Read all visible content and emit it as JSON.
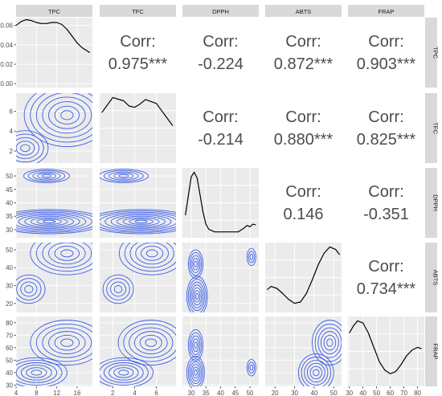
{
  "chart_data": {
    "type": "scatterplot-matrix",
    "variables": [
      "TPC",
      "TFC",
      "DPPH",
      "ABTS",
      "FRAP"
    ],
    "corr_label": "Corr:",
    "correlations": [
      {
        "row": "TFC",
        "col": "TPC",
        "text": "0.975***"
      },
      {
        "row": "DPPH",
        "col": "TPC",
        "text": "-0.224"
      },
      {
        "row": "ABTS",
        "col": "TPC",
        "text": "0.872***"
      },
      {
        "row": "FRAP",
        "col": "TPC",
        "text": "0.903***"
      },
      {
        "row": "DPPH",
        "col": "TFC",
        "text": "-0.214"
      },
      {
        "row": "ABTS",
        "col": "TFC",
        "text": "0.880***"
      },
      {
        "row": "FRAP",
        "col": "TFC",
        "text": "0.825***"
      },
      {
        "row": "ABTS",
        "col": "DPPH",
        "text": "0.146"
      },
      {
        "row": "FRAP",
        "col": "DPPH",
        "text": "-0.351"
      },
      {
        "row": "FRAP",
        "col": "ABTS",
        "text": "0.734***"
      }
    ],
    "axes": {
      "TPC": {
        "range": [
          4,
          19
        ],
        "ticks": [
          "4",
          "8",
          "12",
          "16"
        ]
      },
      "TFC": {
        "range": [
          0.8,
          7.8
        ],
        "ticks": [
          "2",
          "4",
          "6"
        ]
      },
      "DPPH": {
        "range": [
          27,
          53
        ],
        "ticks": [
          "30",
          "35",
          "40",
          "45",
          "50"
        ]
      },
      "ABTS": {
        "range": [
          15,
          54
        ],
        "ticks": [
          "20",
          "30",
          "40",
          "50"
        ]
      },
      "FRAP": {
        "range": [
          29,
          85
        ],
        "ticks": [
          "30",
          "40",
          "50",
          "60",
          "70",
          "80"
        ]
      }
    },
    "density_axis": {
      "variable": "TPC",
      "range": [
        -0.004,
        0.068
      ],
      "ticks": [
        "0.00",
        "0.02",
        "0.04",
        "0.06"
      ]
    },
    "diagonal_densities": {
      "TPC": {
        "x": [
          4,
          5,
          6,
          7,
          8,
          9,
          10,
          11,
          12,
          13,
          14,
          15,
          16,
          17,
          18.5
        ],
        "y": [
          0.06,
          0.064,
          0.066,
          0.065,
          0.063,
          0.062,
          0.062,
          0.063,
          0.063,
          0.061,
          0.056,
          0.049,
          0.042,
          0.037,
          0.032
        ]
      },
      "TFC": {
        "x": [
          1.0,
          2.0,
          3.0,
          3.5,
          4.0,
          4.5,
          5.0,
          6.0,
          7.5
        ],
        "y": [
          0.72,
          0.95,
          0.9,
          0.82,
          0.8,
          0.85,
          0.92,
          0.86,
          0.52
        ]
      },
      "DPPH": {
        "x": [
          28,
          29,
          30,
          31,
          32,
          33,
          34,
          35,
          36,
          38,
          42,
          46,
          48,
          49,
          50,
          51,
          52
        ],
        "y": [
          0.3,
          0.6,
          0.9,
          0.97,
          0.88,
          0.62,
          0.35,
          0.16,
          0.08,
          0.04,
          0.04,
          0.04,
          0.1,
          0.14,
          0.12,
          0.16,
          0.15
        ]
      },
      "ABTS": {
        "x": [
          16,
          18,
          21,
          24,
          27,
          30,
          33,
          36,
          39,
          42,
          45,
          48,
          51,
          53
        ],
        "y": [
          0.3,
          0.35,
          0.32,
          0.24,
          0.15,
          0.09,
          0.11,
          0.24,
          0.45,
          0.68,
          0.86,
          0.96,
          0.92,
          0.84
        ]
      },
      "FRAP": {
        "x": [
          30,
          33,
          36,
          40,
          44,
          48,
          52,
          56,
          60,
          64,
          68,
          72,
          76,
          80,
          83
        ],
        "y": [
          0.7,
          0.8,
          0.87,
          0.84,
          0.7,
          0.5,
          0.3,
          0.18,
          0.13,
          0.16,
          0.26,
          0.38,
          0.46,
          0.5,
          0.48
        ]
      }
    },
    "contour_centers": {
      "TPC|TFC": [
        {
          "x": 14.0,
          "y": 5.6,
          "rx": 1.2,
          "ry": 0.45,
          "n": 7
        },
        {
          "x": 5.8,
          "y": 2.3,
          "rx": 0.9,
          "ry": 0.35,
          "n": 5
        }
      ],
      "TPC|DPPH": [
        {
          "x": 10.5,
          "y": 33.0,
          "rx": 1.2,
          "ry": 0.5,
          "n": 9
        },
        {
          "x": 10.0,
          "y": 50.0,
          "rx": 0.9,
          "ry": 0.5,
          "n": 5
        }
      ],
      "TFC|DPPH": [
        {
          "x": 4.6,
          "y": 33.0,
          "rx": 0.55,
          "ry": 0.5,
          "n": 9
        },
        {
          "x": 3.0,
          "y": 50.0,
          "rx": 0.45,
          "ry": 0.5,
          "n": 5
        }
      ],
      "TPC|ABTS": [
        {
          "x": 14.0,
          "y": 48.0,
          "rx": 1.2,
          "ry": 2.0,
          "n": 6
        },
        {
          "x": 6.5,
          "y": 28.0,
          "rx": 0.8,
          "ry": 2.0,
          "n": 4
        }
      ],
      "TFC|ABTS": [
        {
          "x": 5.6,
          "y": 48.0,
          "rx": 0.5,
          "ry": 2.0,
          "n": 6
        },
        {
          "x": 2.5,
          "y": 28.0,
          "rx": 0.35,
          "ry": 2.0,
          "n": 4
        }
      ],
      "DPPH|ABTS": [
        {
          "x": 32.0,
          "y": 24.0,
          "rx": 0.5,
          "ry": 1.6,
          "n": 7
        },
        {
          "x": 31.5,
          "y": 42.0,
          "rx": 0.5,
          "ry": 1.6,
          "n": 5
        },
        {
          "x": 50.5,
          "y": 46.0,
          "rx": 0.5,
          "ry": 1.6,
          "n": 3
        }
      ],
      "TPC|FRAP": [
        {
          "x": 14.0,
          "y": 64.0,
          "rx": 1.2,
          "ry": 3.0,
          "n": 6
        },
        {
          "x": 8.0,
          "y": 40.0,
          "rx": 1.0,
          "ry": 2.0,
          "n": 6
        }
      ],
      "TFC|FRAP": [
        {
          "x": 5.5,
          "y": 64.0,
          "rx": 0.5,
          "ry": 3.0,
          "n": 6
        },
        {
          "x": 3.0,
          "y": 40.0,
          "rx": 0.45,
          "ry": 2.0,
          "n": 6
        }
      ],
      "DPPH|FRAP": [
        {
          "x": 31.5,
          "y": 40.0,
          "rx": 0.5,
          "ry": 2.2,
          "n": 6
        },
        {
          "x": 31.5,
          "y": 62.0,
          "rx": 0.5,
          "ry": 2.5,
          "n": 5
        },
        {
          "x": 50.5,
          "y": 44.0,
          "rx": 0.5,
          "ry": 2.2,
          "n": 3
        }
      ],
      "ABTS|FRAP": [
        {
          "x": 48.0,
          "y": 64.0,
          "rx": 1.5,
          "ry": 3.0,
          "n": 6
        },
        {
          "x": 41.0,
          "y": 40.0,
          "rx": 1.5,
          "ry": 2.5,
          "n": 6
        }
      ]
    }
  },
  "style": {
    "panel_bg": "#ebebeb",
    "grid_color": "#ffffff",
    "strip_bg": "#d9d9d9",
    "contour_color": "#3b5ee6",
    "density_color": "#000000",
    "text_color": "#4d4d4d"
  }
}
